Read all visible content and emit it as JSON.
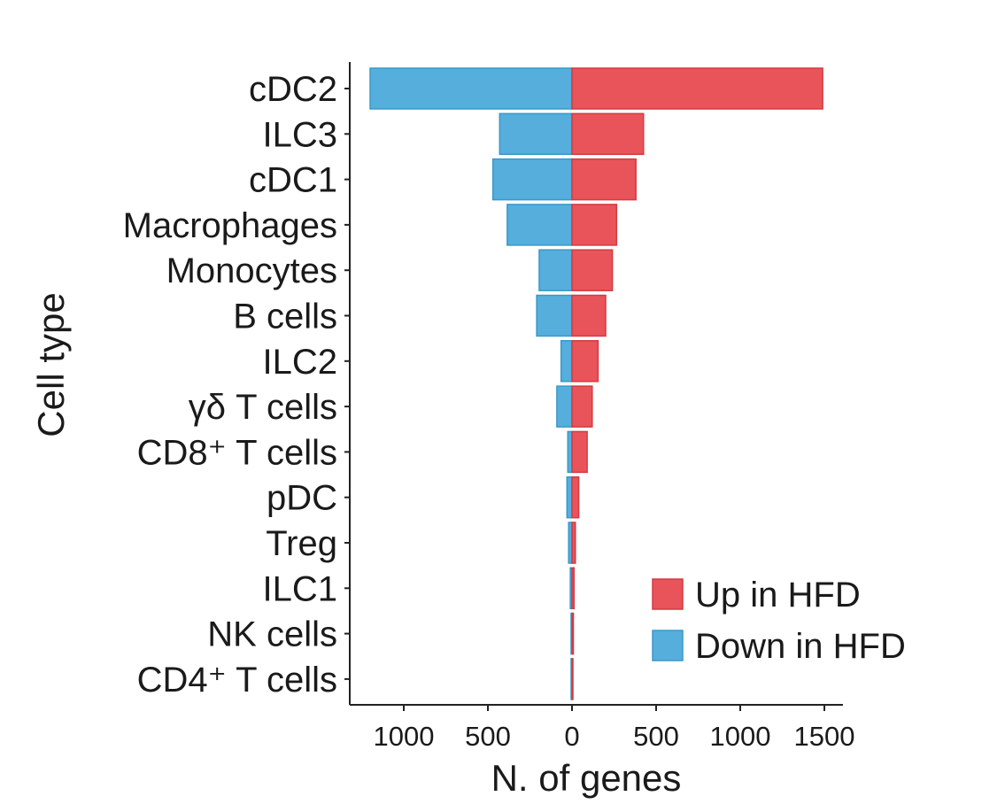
{
  "chart_data": {
    "type": "bar",
    "orientation": "horizontal-diverging",
    "categories": [
      "cDC2",
      "ILC3",
      "cDC1",
      "Macrophages",
      "Monocytes",
      "B cells",
      "ILC2",
      "γδ T cells",
      "CD8⁺ T cells",
      "pDC",
      "Treg",
      "ILC1",
      "NK cells",
      "CD4⁺ T cells"
    ],
    "series": [
      {
        "name": "Up in HFD",
        "color": "#e8545a",
        "values": [
          1490,
          425,
          380,
          265,
          240,
          200,
          155,
          120,
          90,
          40,
          20,
          12,
          8,
          3
        ]
      },
      {
        "name": "Down in HFD",
        "color": "#56aedc",
        "values": [
          1200,
          430,
          470,
          385,
          195,
          210,
          65,
          90,
          25,
          30,
          20,
          10,
          5,
          2
        ]
      }
    ],
    "xlabel": "N. of genes",
    "ylabel": "Cell type",
    "xlim": [
      -1300,
      1600
    ],
    "xticks": [
      -1000,
      -500,
      0,
      500,
      1000,
      1500
    ],
    "xtick_labels": [
      "1000",
      "500",
      "0",
      "500",
      "1000",
      "1500"
    ],
    "legend_position": "bottom-right",
    "grid": false
  }
}
